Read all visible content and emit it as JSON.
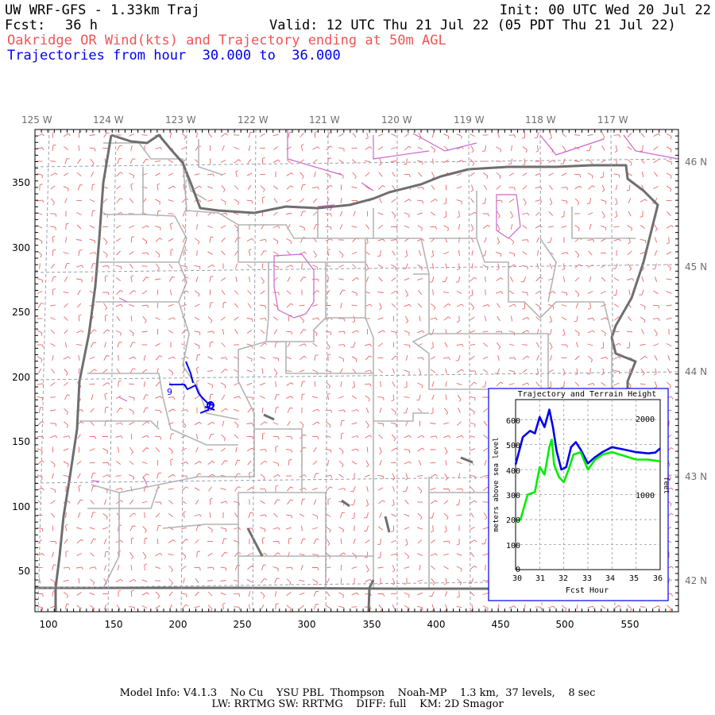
{
  "header": {
    "model": "UW WRF-GFS - 1.33km Traj",
    "init": "Init: 00 UTC Wed 20 Jul 22",
    "fcst_label": "Fcst:",
    "fcst_value": "36 h",
    "valid": "Valid: 12 UTC Thu 21 Jul 22 (05 PDT Thu 21 Jul 22)",
    "subtitle": "Oakridge OR Wind(kts) and Trajectory ending at 50m AGL",
    "traj_prefix": "Trajectories from hour",
    "traj_from": "30.000",
    "traj_to_word": "to",
    "traj_to": "36.000"
  },
  "map": {
    "lon_labels": [
      "125 W",
      "124 W",
      "123 W",
      "122 W",
      "121 W",
      "120 W",
      "119 W",
      "118 W",
      "117 W"
    ],
    "lat_labels": [
      "46 N",
      "45 N",
      "44 N",
      "43 N",
      "42 N"
    ],
    "x_ticks": [
      "100",
      "150",
      "200",
      "250",
      "300",
      "350",
      "400",
      "450",
      "500",
      "550"
    ],
    "y_ticks": [
      "350",
      "300",
      "250",
      "200",
      "150",
      "100",
      "50"
    ],
    "trajectory_start_label": "9",
    "colors": {
      "wind_barbs": "#ee6666",
      "state_border": "#707070",
      "county_lines": "#b0b0b0",
      "urban_areas": "#cc66cc",
      "trajectory": "#0000ee",
      "grid": "#9aa0b0"
    }
  },
  "inset": {
    "title": "Trajectory and Terrain Height",
    "ylabel_left": "meters above sea level",
    "ylabel_right": "feet",
    "xlabel": "Fcst Hour",
    "x_ticks": [
      "30",
      "31",
      "32",
      "33",
      "34",
      "35",
      "36"
    ],
    "y_ticks_left": [
      "0",
      "100",
      "200",
      "300",
      "400",
      "500",
      "600"
    ],
    "y_ticks_right": [
      "1000",
      "2000"
    ]
  },
  "chart_data": {
    "type": "line",
    "title": "Trajectory and Terrain Height",
    "xlabel": "Fcst Hour",
    "ylabel": "meters above sea level",
    "xlim": [
      30,
      36
    ],
    "ylim": [
      0,
      680
    ],
    "grid": true,
    "series": [
      {
        "color": "#0000ee",
        "x": [
          30.0,
          30.3,
          30.6,
          30.8,
          31.0,
          31.2,
          31.4,
          31.55,
          31.7,
          31.9,
          32.1,
          32.3,
          32.5,
          32.7,
          33.0,
          33.3,
          33.6,
          34.0,
          34.5,
          35.0,
          35.5,
          35.8,
          36.0
        ],
        "y": [
          420,
          530,
          555,
          545,
          610,
          570,
          640,
          570,
          475,
          400,
          410,
          490,
          510,
          480,
          425,
          450,
          470,
          490,
          480,
          470,
          465,
          468,
          485
        ]
      },
      {
        "color": "#00ee00",
        "x": [
          30.0,
          30.2,
          30.5,
          30.8,
          31.0,
          31.2,
          31.4,
          31.5,
          31.6,
          31.8,
          32.0,
          32.2,
          32.4,
          32.7,
          33.0,
          33.3,
          33.6,
          34.0,
          34.5,
          35.0,
          35.5,
          36.0
        ],
        "y": [
          195,
          200,
          300,
          310,
          410,
          380,
          490,
          520,
          420,
          370,
          350,
          400,
          460,
          470,
          400,
          440,
          460,
          470,
          455,
          440,
          440,
          433
        ]
      }
    ]
  },
  "footer": {
    "line1": "Model Info: V4.1.3    No Cu    YSU PBL  Thompson    Noah-MP    1.3 km,  37 levels,    8 sec",
    "line2": "LW: RRTMG SW: RRTMG    DIFF: full    KM: 2D Smagor"
  }
}
